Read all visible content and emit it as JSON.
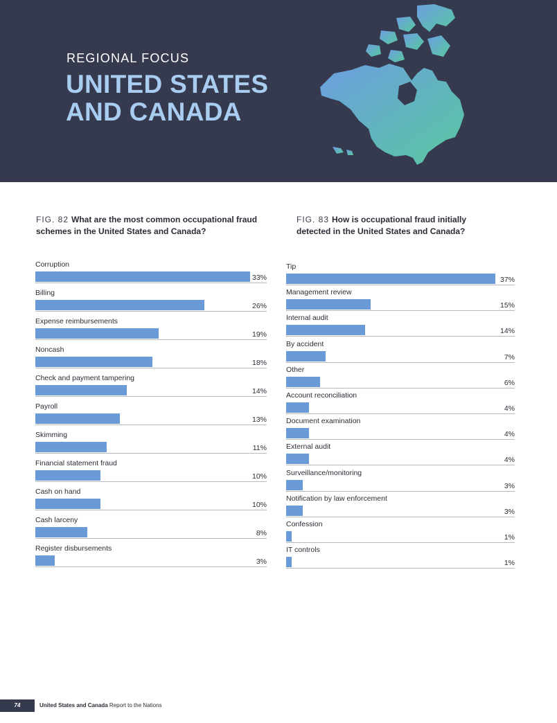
{
  "header": {
    "kicker": "REGIONAL FOCUS",
    "title_line1": "UNITED STATES",
    "title_line2": "AND CANADA",
    "map_gradient": [
      "#6c9ee0",
      "#58c8a0"
    ]
  },
  "chart_data": [
    {
      "type": "bar",
      "orientation": "horizontal",
      "fig_label": "FIG. 82",
      "title": "What are the most common occupational fraud schemes in the United States and Canada?",
      "title_line1": "What are the most common occupational fraud",
      "title_line2": "schemes in the United States and Canada?",
      "categories": [
        "Corruption",
        "Billing",
        "Expense reimbursements",
        "Noncash",
        "Check and payment tampering",
        "Payroll",
        "Skimming",
        "Financial statement fraud",
        "Cash on hand",
        "Cash larceny",
        "Register disbursements"
      ],
      "values": [
        33,
        26,
        19,
        18,
        14,
        13,
        11,
        10,
        10,
        8,
        3
      ],
      "value_labels": [
        "33%",
        "26%",
        "19%",
        "18%",
        "14%",
        "13%",
        "11%",
        "10%",
        "10%",
        "8%",
        "3%"
      ],
      "xlim": [
        0,
        33
      ],
      "color": "#6a9bd8"
    },
    {
      "type": "bar",
      "orientation": "horizontal",
      "fig_label": "FIG. 83",
      "title": "How is occupational fraud initially detected in the United States and Canada?",
      "title_line1": "How is occupational fraud initially",
      "title_line2": "detected in the United States and Canada?",
      "categories": [
        "Tip",
        "Management review",
        "Internal audit",
        "By accident",
        "Other",
        "Account reconciliation",
        "Document examination",
        "External audit",
        "Surveillance/monitoring",
        "Notification by law enforcement",
        "Confession",
        "IT controls"
      ],
      "values": [
        37,
        15,
        14,
        7,
        6,
        4,
        4,
        4,
        3,
        3,
        1,
        1
      ],
      "value_labels": [
        "37%",
        "15%",
        "14%",
        "7%",
        "6%",
        "4%",
        "4%",
        "4%",
        "3%",
        "3%",
        "1%",
        "1%"
      ],
      "xlim": [
        0,
        37
      ],
      "color": "#6a9bd8"
    }
  ],
  "footer": {
    "page_number": "74",
    "section": "United States and Canada",
    "report": "Report to the Nations"
  }
}
